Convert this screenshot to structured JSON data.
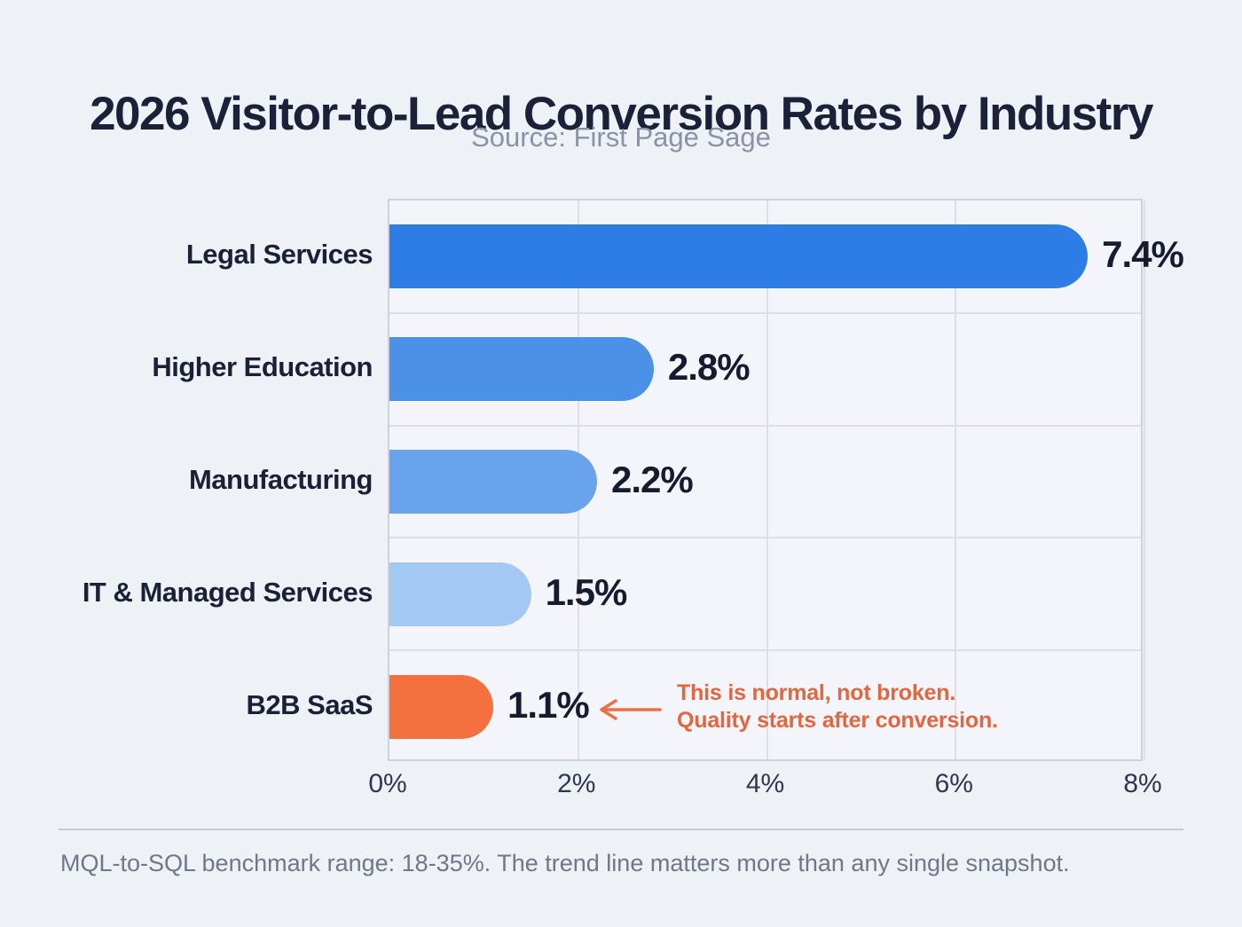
{
  "header": {
    "title": "2026 Visitor-to-Lead Conversion Rates by Industry",
    "source": "Source: First Page Sage"
  },
  "chart_data": {
    "type": "bar",
    "orientation": "horizontal",
    "title": "2026 Visitor-to-Lead Conversion Rates by Industry",
    "subtitle": "Source: First Page Sage",
    "categories": [
      "Legal Services",
      "Higher Education",
      "Manufacturing",
      "IT & Managed Services",
      "B2B SaaS"
    ],
    "values": [
      7.4,
      2.8,
      2.2,
      1.5,
      1.1
    ],
    "value_labels": [
      "7.4%",
      "2.8%",
      "2.2%",
      "1.5%",
      "1.1%"
    ],
    "bar_colors": [
      "#2e7de7",
      "#4b91e8",
      "#69a3ec",
      "#a3c8f3",
      "#f4703f"
    ],
    "xlim": [
      0,
      8
    ],
    "x_tick_values": [
      0,
      2,
      4,
      6,
      8
    ],
    "x_tick_labels": [
      "0%",
      "2%",
      "4%",
      "6%",
      "8%"
    ],
    "grid": true,
    "legend": false,
    "annotation": {
      "line1": "This is normal, not broken.",
      "line2": "Quality starts after conversion.",
      "target_category": "B2B SaaS",
      "text_color": "#e2663f",
      "arrow_color": "#e8714a"
    }
  },
  "footer": {
    "note": "MQL-to-SQL benchmark range: 18-35%. The trend line matters more than any single snapshot."
  },
  "colors": {
    "background": "#eef1f6",
    "plot_background": "#f3f5fa",
    "gridline": "#dcdfe8",
    "plot_border": "#ccd1dd",
    "title": "#1b2139",
    "subtitle": "#8a93a5",
    "category_label": "#1a2137",
    "value_label": "#151c30",
    "tick_label": "#2e3750",
    "footnote": "#6e7889",
    "divider": "#c5cad6"
  }
}
